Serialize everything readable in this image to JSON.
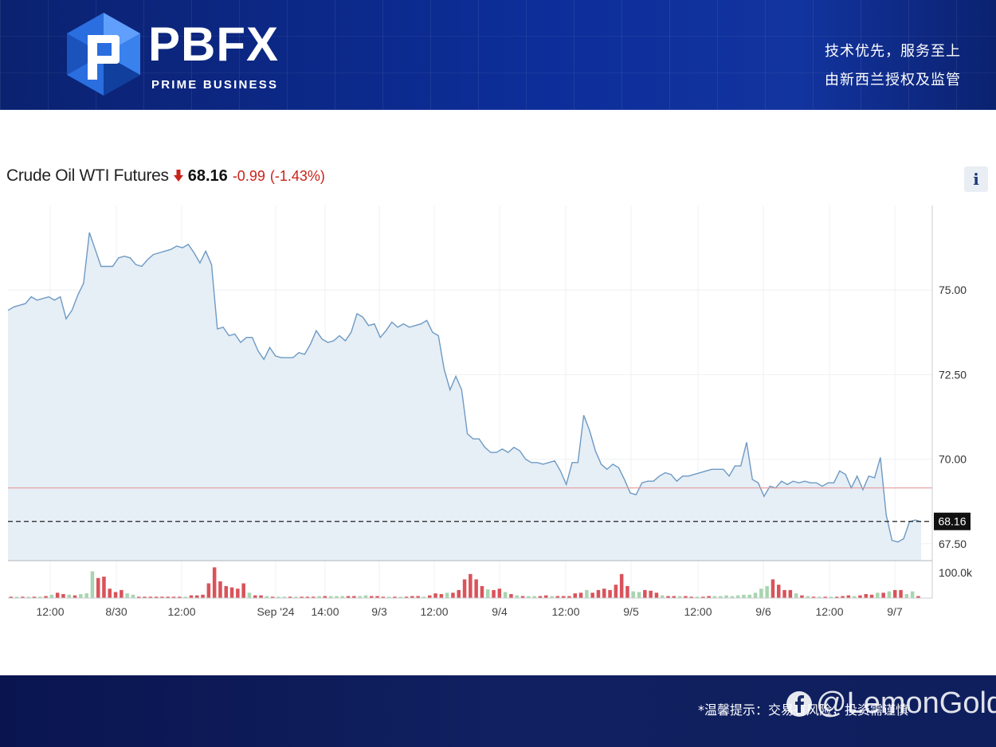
{
  "header": {
    "brand_name": "PBFX",
    "brand_tag": "PRIME BUSINESS",
    "slogan_line1": "技术优先，服务至上",
    "slogan_line2": "由新西兰授权及监管",
    "colors": {
      "background": "#0d2e9a",
      "logo_accent": "#2a6ee0"
    }
  },
  "quote": {
    "title": "Crude Oil WTI Futures",
    "direction_icon": "down-arrow-icon",
    "price": "68.16",
    "change": "-0.99",
    "change_pct": "(-1.43%)",
    "change_color": "#c8231a",
    "info_button": "i"
  },
  "footer": {
    "notice": "*温馨提示：交易有风险，投资需谨慎",
    "watermark": "@LemonGold",
    "watermark_icon": "facebook-icon"
  },
  "chart_data": {
    "type": "area",
    "title": "Crude Oil WTI Futures",
    "ylim": [
      67.0,
      77.5
    ],
    "yticks": [
      "75.00",
      "72.50",
      "70.00",
      "67.50"
    ],
    "x_tick_labels": [
      "12:00",
      "8/30",
      "12:00",
      "Sep '24",
      "14:00",
      "9/3",
      "12:00",
      "9/4",
      "12:00",
      "9/5",
      "12:00",
      "9/6",
      "12:00",
      "9/7"
    ],
    "last_price_label": "68.16",
    "last_price": 68.16,
    "previous_close_line": 69.15,
    "volume_axis_label": "100.0k",
    "colors": {
      "line": "#6d9ac4",
      "fill": "#e6eef6",
      "reference": "#e39a9a",
      "volume_up": "#a8d5b0",
      "volume_down": "#d9535a"
    },
    "grid": true,
    "series": [
      {
        "values": [
          74.4,
          74.5,
          74.55,
          74.6,
          74.8,
          74.7,
          74.75,
          74.8,
          74.7,
          74.8,
          74.15,
          74.4,
          74.85,
          75.2,
          76.7,
          76.2,
          75.7,
          75.7,
          75.7,
          75.95,
          76.0,
          75.95,
          75.75,
          75.7,
          75.9,
          76.05,
          76.1,
          76.15,
          76.2,
          76.3,
          76.25,
          76.35,
          76.1,
          75.8,
          76.15,
          75.75,
          73.85,
          73.9,
          73.65,
          73.7,
          73.45,
          73.6,
          73.6,
          73.2,
          72.95,
          73.3,
          73.05,
          73.0,
          73.0,
          73.0,
          73.15,
          73.1,
          73.4,
          73.8,
          73.55,
          73.45,
          73.5,
          73.65,
          73.5,
          73.75,
          74.3,
          74.2,
          73.95,
          74.0,
          73.6,
          73.8,
          74.05,
          73.9,
          74.0,
          73.9,
          73.95,
          74.0,
          74.1,
          73.75,
          73.65,
          72.65,
          72.05,
          72.45,
          72.05,
          70.75,
          70.6,
          70.6,
          70.35,
          70.2,
          70.2,
          70.3,
          70.2,
          70.35,
          70.25,
          70.0,
          69.9,
          69.9,
          69.85,
          69.9,
          69.95,
          69.65,
          69.25,
          69.9,
          69.9,
          71.3,
          70.85,
          70.25,
          69.85,
          69.7,
          69.85,
          69.75,
          69.4,
          69.0,
          68.95,
          69.3,
          69.35,
          69.35,
          69.5,
          69.6,
          69.55,
          69.35,
          69.5,
          69.5,
          69.55,
          69.6,
          69.65,
          69.7,
          69.7,
          69.7,
          69.5,
          69.8,
          69.8,
          70.5,
          69.4,
          69.3,
          68.9,
          69.2,
          69.15,
          69.35,
          69.25,
          69.35,
          69.3,
          69.35,
          69.3,
          69.3,
          69.2,
          69.3,
          69.3,
          69.65,
          69.55,
          69.15,
          69.5,
          69.1,
          69.5,
          69.45,
          70.05,
          68.35,
          67.6,
          67.55,
          67.65,
          68.15,
          68.2,
          68.15
        ]
      }
    ],
    "volume": [
      {
        "value": 2,
        "dir": "down"
      },
      {
        "value": 2,
        "dir": "up"
      },
      {
        "value": 2,
        "dir": "down"
      },
      {
        "value": 2,
        "dir": "up"
      },
      {
        "value": 2,
        "dir": "down"
      },
      {
        "value": 2,
        "dir": "up"
      },
      {
        "value": 3,
        "dir": "down"
      },
      {
        "value": 5,
        "dir": "up"
      },
      {
        "value": 8,
        "dir": "down"
      },
      {
        "value": 6,
        "dir": "down"
      },
      {
        "value": 5,
        "dir": "up"
      },
      {
        "value": 4,
        "dir": "down"
      },
      {
        "value": 6,
        "dir": "up"
      },
      {
        "value": 7,
        "dir": "up"
      },
      {
        "value": 40,
        "dir": "up"
      },
      {
        "value": 30,
        "dir": "down"
      },
      {
        "value": 32,
        "dir": "down"
      },
      {
        "value": 14,
        "dir": "down"
      },
      {
        "value": 9,
        "dir": "down"
      },
      {
        "value": 12,
        "dir": "down"
      },
      {
        "value": 7,
        "dir": "up"
      },
      {
        "value": 5,
        "dir": "up"
      },
      {
        "value": 2,
        "dir": "down"
      },
      {
        "value": 2,
        "dir": "down"
      },
      {
        "value": 2,
        "dir": "down"
      },
      {
        "value": 2,
        "dir": "down"
      },
      {
        "value": 2,
        "dir": "down"
      },
      {
        "value": 2,
        "dir": "down"
      },
      {
        "value": 2,
        "dir": "down"
      },
      {
        "value": 2,
        "dir": "down"
      },
      {
        "value": 2,
        "dir": "up"
      },
      {
        "value": 4,
        "dir": "down"
      },
      {
        "value": 4,
        "dir": "down"
      },
      {
        "value": 5,
        "dir": "down"
      },
      {
        "value": 22,
        "dir": "down"
      },
      {
        "value": 46,
        "dir": "down"
      },
      {
        "value": 25,
        "dir": "down"
      },
      {
        "value": 18,
        "dir": "down"
      },
      {
        "value": 16,
        "dir": "down"
      },
      {
        "value": 14,
        "dir": "down"
      },
      {
        "value": 22,
        "dir": "down"
      },
      {
        "value": 8,
        "dir": "up"
      },
      {
        "value": 4,
        "dir": "down"
      },
      {
        "value": 4,
        "dir": "down"
      },
      {
        "value": 3,
        "dir": "up"
      },
      {
        "value": 2,
        "dir": "down"
      },
      {
        "value": 2,
        "dir": "up"
      },
      {
        "value": 2,
        "dir": "up"
      },
      {
        "value": 2,
        "dir": "down"
      },
      {
        "value": 2,
        "dir": "up"
      },
      {
        "value": 2,
        "dir": "down"
      },
      {
        "value": 2,
        "dir": "down"
      },
      {
        "value": 2,
        "dir": "down"
      },
      {
        "value": 3,
        "dir": "up"
      },
      {
        "value": 3,
        "dir": "down"
      },
      {
        "value": 3,
        "dir": "up"
      },
      {
        "value": 3,
        "dir": "up"
      },
      {
        "value": 3,
        "dir": "up"
      },
      {
        "value": 3,
        "dir": "down"
      },
      {
        "value": 3,
        "dir": "down"
      },
      {
        "value": 3,
        "dir": "up"
      },
      {
        "value": 4,
        "dir": "up"
      },
      {
        "value": 3,
        "dir": "down"
      },
      {
        "value": 3,
        "dir": "down"
      },
      {
        "value": 2,
        "dir": "down"
      },
      {
        "value": 2,
        "dir": "up"
      },
      {
        "value": 2,
        "dir": "down"
      },
      {
        "value": 2,
        "dir": "up"
      },
      {
        "value": 2,
        "dir": "down"
      },
      {
        "value": 3,
        "dir": "down"
      },
      {
        "value": 3,
        "dir": "down"
      },
      {
        "value": 2,
        "dir": "up"
      },
      {
        "value": 4,
        "dir": "down"
      },
      {
        "value": 7,
        "dir": "down"
      },
      {
        "value": 6,
        "dir": "down"
      },
      {
        "value": 8,
        "dir": "up"
      },
      {
        "value": 8,
        "dir": "down"
      },
      {
        "value": 12,
        "dir": "down"
      },
      {
        "value": 28,
        "dir": "down"
      },
      {
        "value": 36,
        "dir": "down"
      },
      {
        "value": 28,
        "dir": "down"
      },
      {
        "value": 18,
        "dir": "down"
      },
      {
        "value": 13,
        "dir": "up"
      },
      {
        "value": 12,
        "dir": "down"
      },
      {
        "value": 14,
        "dir": "down"
      },
      {
        "value": 9,
        "dir": "up"
      },
      {
        "value": 6,
        "dir": "down"
      },
      {
        "value": 4,
        "dir": "up"
      },
      {
        "value": 3,
        "dir": "down"
      },
      {
        "value": 3,
        "dir": "up"
      },
      {
        "value": 3,
        "dir": "up"
      },
      {
        "value": 3,
        "dir": "down"
      },
      {
        "value": 4,
        "dir": "down"
      },
      {
        "value": 3,
        "dir": "up"
      },
      {
        "value": 3,
        "dir": "down"
      },
      {
        "value": 3,
        "dir": "down"
      },
      {
        "value": 3,
        "dir": "down"
      },
      {
        "value": 7,
        "dir": "down"
      },
      {
        "value": 8,
        "dir": "down"
      },
      {
        "value": 12,
        "dir": "up"
      },
      {
        "value": 8,
        "dir": "down"
      },
      {
        "value": 12,
        "dir": "down"
      },
      {
        "value": 14,
        "dir": "down"
      },
      {
        "value": 12,
        "dir": "down"
      },
      {
        "value": 20,
        "dir": "down"
      },
      {
        "value": 36,
        "dir": "down"
      },
      {
        "value": 18,
        "dir": "down"
      },
      {
        "value": 10,
        "dir": "up"
      },
      {
        "value": 9,
        "dir": "up"
      },
      {
        "value": 12,
        "dir": "down"
      },
      {
        "value": 11,
        "dir": "down"
      },
      {
        "value": 8,
        "dir": "down"
      },
      {
        "value": 4,
        "dir": "up"
      },
      {
        "value": 3,
        "dir": "down"
      },
      {
        "value": 3,
        "dir": "down"
      },
      {
        "value": 3,
        "dir": "up"
      },
      {
        "value": 3,
        "dir": "down"
      },
      {
        "value": 2,
        "dir": "down"
      },
      {
        "value": 2,
        "dir": "up"
      },
      {
        "value": 2,
        "dir": "down"
      },
      {
        "value": 3,
        "dir": "down"
      },
      {
        "value": 3,
        "dir": "up"
      },
      {
        "value": 3,
        "dir": "up"
      },
      {
        "value": 4,
        "dir": "up"
      },
      {
        "value": 3,
        "dir": "up"
      },
      {
        "value": 4,
        "dir": "up"
      },
      {
        "value": 5,
        "dir": "up"
      },
      {
        "value": 5,
        "dir": "up"
      },
      {
        "value": 8,
        "dir": "up"
      },
      {
        "value": 14,
        "dir": "up"
      },
      {
        "value": 18,
        "dir": "up"
      },
      {
        "value": 28,
        "dir": "down"
      },
      {
        "value": 20,
        "dir": "down"
      },
      {
        "value": 12,
        "dir": "down"
      },
      {
        "value": 12,
        "dir": "down"
      },
      {
        "value": 7,
        "dir": "up"
      },
      {
        "value": 4,
        "dir": "down"
      },
      {
        "value": 3,
        "dir": "up"
      },
      {
        "value": 2,
        "dir": "down"
      },
      {
        "value": 2,
        "dir": "up"
      },
      {
        "value": 2,
        "dir": "down"
      },
      {
        "value": 2,
        "dir": "up"
      },
      {
        "value": 2,
        "dir": "down"
      },
      {
        "value": 3,
        "dir": "down"
      },
      {
        "value": 4,
        "dir": "down"
      },
      {
        "value": 3,
        "dir": "up"
      },
      {
        "value": 4,
        "dir": "down"
      },
      {
        "value": 6,
        "dir": "down"
      },
      {
        "value": 5,
        "dir": "down"
      },
      {
        "value": 8,
        "dir": "up"
      },
      {
        "value": 8,
        "dir": "down"
      },
      {
        "value": 10,
        "dir": "up"
      },
      {
        "value": 12,
        "dir": "down"
      },
      {
        "value": 12,
        "dir": "down"
      },
      {
        "value": 6,
        "dir": "up"
      },
      {
        "value": 10,
        "dir": "up"
      },
      {
        "value": 3,
        "dir": "down"
      }
    ]
  }
}
